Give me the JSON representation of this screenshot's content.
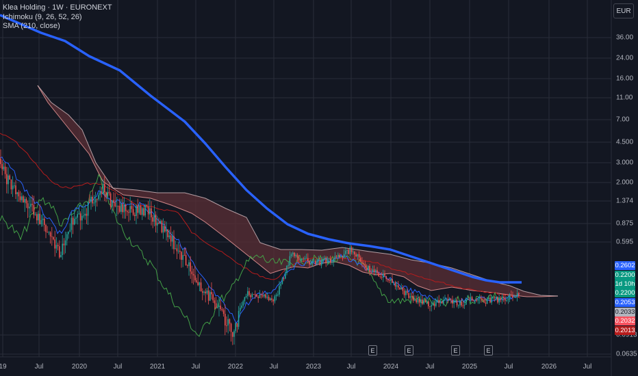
{
  "legend": {
    "symbol": "Klea Holding · 1W · EURONEXT",
    "ichimoku": "Ichimoku (9, 26, 52, 26)",
    "sma": "SMA (210, close)"
  },
  "currency": "EUR",
  "y_axis": {
    "scale": "log",
    "ticks": [
      "36.00",
      "24.00",
      "16.00",
      "11.00",
      "7.00",
      "4.500",
      "3.000",
      "2.000",
      "1.374",
      "0.875",
      "0.595",
      "0.0913",
      "0.0635"
    ]
  },
  "x_axis": {
    "ticks": [
      "19",
      "Jul",
      "2020",
      "Jul",
      "2021",
      "Jul",
      "2022",
      "Jul",
      "2023",
      "Jul",
      "2024",
      "Jul",
      "2025",
      "Jul",
      "2026",
      "Jul"
    ]
  },
  "price_tags": [
    {
      "label": "0.2602",
      "color": "#2962ff",
      "text_color": "#ffffff"
    },
    {
      "label": "0.2200",
      "color": "#089981",
      "text_color": "#ffffff"
    },
    {
      "label": "1d 10h",
      "color": "#089981",
      "text_color": "#ffffff"
    },
    {
      "label": "0.2200",
      "color": "#089981",
      "text_color": "#ffffff"
    },
    {
      "label": "0.2053",
      "color": "#2962ff",
      "text_color": "#ffffff"
    },
    {
      "label": "0.2033",
      "color": "#b2b5be",
      "text_color": "#131722"
    },
    {
      "label": "0.2032",
      "color": "#f7525f",
      "text_color": "#ffffff"
    },
    {
      "label": "0.2013",
      "color": "#b71c1c",
      "text_color": "#ffffff"
    }
  ],
  "earnings_markers": [
    "E",
    "E",
    "E",
    "E"
  ],
  "colors": {
    "background": "#131722",
    "grid": "#2a2e39",
    "sma": "#2962ff",
    "up_candle": "#26a69a",
    "down_candle": "#ef5350",
    "conversion_line": "#2962ff",
    "base_line": "#b71c1c",
    "lagging_span": "#43a047",
    "lead_a": "#a5d6a7",
    "lead_b": "#ef9a9a",
    "cloud_bearish": "#5b2f36"
  },
  "chart_data": {
    "type": "line",
    "y_scale": "log",
    "x": [
      "2019-01",
      "2019-07",
      "2020-01",
      "2020-07",
      "2021-01",
      "2021-07",
      "2022-01",
      "2022-07",
      "2023-01",
      "2023-07",
      "2024-01",
      "2024-07",
      "2025-01",
      "2025-07"
    ],
    "series": [
      {
        "name": "SMA (210, close)",
        "values": [
          45,
          38,
          26,
          19,
          11,
          6.5,
          3.4,
          1.6,
          0.85,
          0.62,
          0.52,
          0.42,
          0.33,
          0.2602
        ]
      },
      {
        "name": "Klea Holding · 1W · EURONEXT",
        "values": [
          3.2,
          0.95,
          1.9,
          1.6,
          1.3,
          0.55,
          0.11,
          0.21,
          0.48,
          0.42,
          0.3,
          0.2,
          0.2,
          0.22
        ]
      },
      {
        "name": "Ichimoku (9, 26, 52, 26)",
        "values": [
          5.5,
          2.5,
          2.0,
          1.6,
          1.4,
          0.85,
          0.32,
          0.28,
          0.42,
          0.42,
          0.33,
          0.26,
          0.22,
          0.2032
        ]
      }
    ]
  }
}
